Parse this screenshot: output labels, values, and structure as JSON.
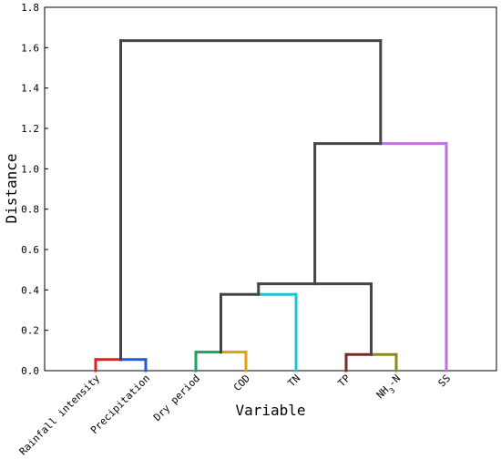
{
  "chart_data": {
    "type": "dendrogram",
    "xlabel": "Variable",
    "ylabel": "Distance",
    "ylim": [
      0,
      1.8
    ],
    "yticks": [
      "0.0",
      "0.2",
      "0.4",
      "0.6",
      "0.8",
      "1.0",
      "1.2",
      "1.4",
      "1.6",
      "1.8"
    ],
    "leaves": [
      "Rainfall intensity",
      "Precipitation",
      "Dry period",
      "COD",
      "TN",
      "TP",
      "NH3-N",
      "SS"
    ],
    "merges": [
      {
        "left": "Rainfall intensity",
        "right": "Precipitation",
        "distance": 0.055,
        "color": "#e02020,#1a5fd9"
      },
      {
        "left": "Dry period",
        "right": "COD",
        "distance": 0.092,
        "color": "#1aa35a,#e0a010"
      },
      {
        "left": "TP",
        "right": "NH3-N",
        "distance": 0.08,
        "color": "#7b2a2a,#8b8b20"
      },
      {
        "left": "{Dry period, COD}",
        "right": "TN",
        "distance": 0.378,
        "color": "#1fc4d0"
      },
      {
        "left": "{Dry period, COD, TN}",
        "right": "{TP, NH3-N}",
        "distance": 0.43,
        "color": "#454545"
      },
      {
        "left": "{Dry period, COD, TN, TP, NH3-N}",
        "right": "SS",
        "distance": 1.125,
        "color": "#c070e0"
      },
      {
        "left": "{Rainfall intensity, Precipitation}",
        "right": "{rest}",
        "distance": 1.635,
        "color": "#454545"
      }
    ]
  }
}
